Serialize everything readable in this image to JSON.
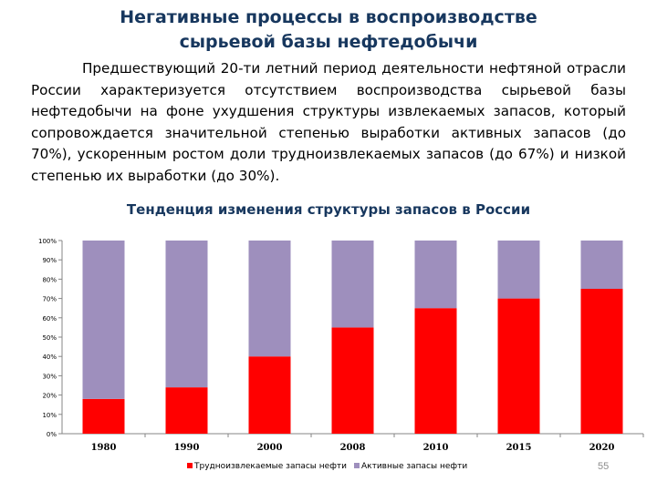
{
  "slide": {
    "title_line1": "Негативные процессы в воспроизводстве",
    "title_line2": "сырьевой базы нефтедобычи",
    "paragraph": "Предшествующий 20-ти летний период деятельности нефтяной отрасли России характеризуется отсутствием воспроизводства сырьевой базы нефтедобычи на фоне ухудшения структуры извлекаемых запасов, который сопровождается значительной степенью выработки активных запасов (до 70%), ускоренным ростом доли трудноизвлекаемых запасов (до 67%) и низкой степенью их выработки (до 30%).",
    "slide_number": "55"
  },
  "colors": {
    "title": "#17375e",
    "hard_to_recover": "#ff0000",
    "active": "#9e8fbd"
  },
  "chart_data": {
    "type": "bar",
    "stacked": true,
    "title": "Тенденция изменения структуры запасов в России",
    "categories": [
      "1980",
      "1990",
      "2000",
      "2008",
      "2010",
      "2015",
      "2020"
    ],
    "series": [
      {
        "name": "Трудноизвлекаемые запасы нефти",
        "color": "#ff0000",
        "values": [
          18,
          24,
          40,
          55,
          65,
          70,
          75
        ]
      },
      {
        "name": "Активные запасы нефти",
        "color": "#9e8fbd",
        "values": [
          82,
          76,
          60,
          45,
          35,
          30,
          25
        ]
      }
    ],
    "yticks": [
      "0%",
      "10%",
      "20%",
      "30%",
      "40%",
      "50%",
      "60%",
      "70%",
      "80%",
      "90%",
      "100%"
    ],
    "ylim": [
      0,
      100
    ],
    "grid": false,
    "legend": "bottom"
  }
}
